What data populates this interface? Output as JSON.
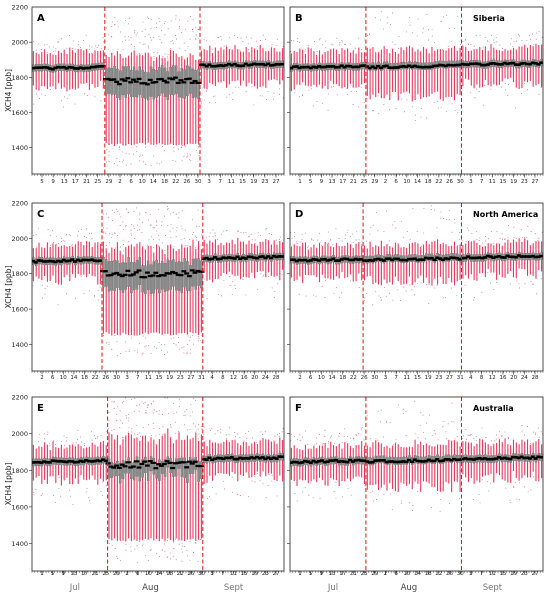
{
  "figure": {
    "month_labels": [
      "Jul",
      "Aug",
      "Sept"
    ],
    "colors": {
      "whisker": "#e8355d",
      "box": "#8c8c8c",
      "median": "#000000",
      "divider": "#e01010",
      "outlier": "#c0506a"
    }
  },
  "chart_data": [
    {
      "type": "boxplot",
      "panel": "A",
      "region": "",
      "ylabel": "XCH4 [ppb]",
      "ylim": [
        1250,
        2200
      ],
      "yticks": [
        1400,
        1600,
        1800,
        2000
      ],
      "xticklabels": [
        "5",
        "9",
        "13",
        "17",
        "21",
        "25",
        "29",
        "2",
        "6",
        "10",
        "14",
        "18",
        "22",
        "26",
        "30",
        "3",
        "7",
        "11",
        "15",
        "19",
        "23",
        "27"
      ],
      "event_window_days": [
        26,
        60
      ],
      "day_count": 90,
      "baseline_median": 1850,
      "baseline_spread": 80,
      "event_median": 1780,
      "event_low_whisker": 1420
    },
    {
      "type": "boxplot",
      "panel": "B",
      "region": "Siberia",
      "ylabel": "",
      "ylim": [
        1250,
        2200
      ],
      "yticks": [],
      "xticklabels": [
        "1",
        "5",
        "9",
        "13",
        "17",
        "21",
        "25",
        "29",
        "2",
        "6",
        "10",
        "14",
        "18",
        "22",
        "26",
        "30",
        "3",
        "7",
        "11",
        "15",
        "19",
        "23",
        "27"
      ],
      "event_window_days": [
        27,
        61
      ],
      "day_count": 90,
      "baseline_median": 1855,
      "baseline_spread": 80,
      "event_median": 1855,
      "event_low_whisker": 1720
    },
    {
      "type": "boxplot",
      "panel": "C",
      "region": "",
      "ylabel": "XCH4 [ppb]",
      "ylim": [
        1250,
        2200
      ],
      "yticks": [
        1400,
        1600,
        1800,
        2000
      ],
      "xticklabels": [
        "2",
        "6",
        "10",
        "14",
        "18",
        "22",
        "26",
        "30",
        "3",
        "7",
        "11",
        "15",
        "19",
        "23",
        "27",
        "31",
        "4",
        "8",
        "12",
        "16",
        "20",
        "24",
        "28"
      ],
      "event_window_days": [
        25,
        61
      ],
      "day_count": 90,
      "baseline_median": 1870,
      "baseline_spread": 75,
      "event_median": 1800,
      "event_low_whisker": 1460
    },
    {
      "type": "boxplot",
      "panel": "D",
      "region": "North America",
      "ylabel": "",
      "ylim": [
        1250,
        2200
      ],
      "yticks": [],
      "xticklabels": [
        "2",
        "6",
        "10",
        "14",
        "18",
        "22",
        "26",
        "30",
        "3",
        "7",
        "11",
        "15",
        "19",
        "23",
        "27",
        "31",
        "4",
        "8",
        "12",
        "16",
        "20",
        "24",
        "28"
      ],
      "event_window_days": [
        26,
        61
      ],
      "day_count": 90,
      "baseline_median": 1875,
      "baseline_spread": 70,
      "event_median": 1875,
      "event_low_whisker": 1790
    },
    {
      "type": "boxplot",
      "panel": "E",
      "region": "",
      "ylabel": "XCH4 [ppb]",
      "ylim": [
        1250,
        2200
      ],
      "yticks": [
        1400,
        1600,
        1800,
        2000
      ],
      "xticklabels": [
        "1",
        "5",
        "9",
        "13",
        "17",
        "21",
        "25",
        "29",
        "2",
        "6",
        "10",
        "14",
        "18",
        "22",
        "26",
        "30",
        "3",
        "7",
        "11",
        "15",
        "19",
        "23",
        "27"
      ],
      "event_window_days": [
        27,
        61
      ],
      "day_count": 90,
      "baseline_median": 1845,
      "baseline_spread": 75,
      "event_median": 1830,
      "event_low_whisker": 1420
    },
    {
      "type": "boxplot",
      "panel": "F",
      "region": "Australia",
      "ylabel": "",
      "ylim": [
        1250,
        2200
      ],
      "yticks": [],
      "xticklabels": [
        "1",
        "5",
        "9",
        "13",
        "17",
        "21",
        "25",
        "29",
        "2",
        "6",
        "10",
        "14",
        "18",
        "22",
        "26",
        "30",
        "3",
        "7",
        "11",
        "15",
        "19",
        "23",
        "27"
      ],
      "event_window_days": [
        27,
        61
      ],
      "day_count": 90,
      "baseline_median": 1845,
      "baseline_spread": 75,
      "event_median": 1845,
      "event_low_whisker": 1740
    }
  ]
}
